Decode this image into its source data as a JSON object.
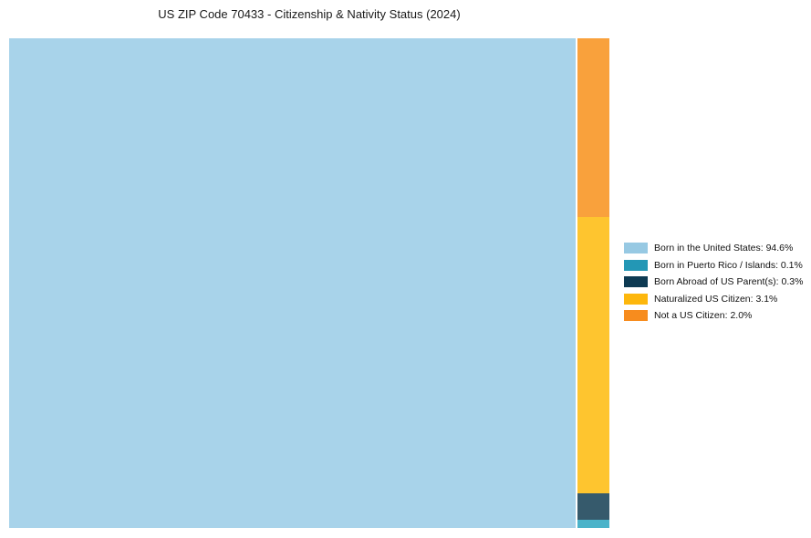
{
  "title": "US ZIP Code 70433 - Citizenship & Nativity Status (2024)",
  "background_color": "#ffffff",
  "chart_data": {
    "type": "treemap",
    "title": "US ZIP Code 70433 - Citizenship & Nativity Status (2024)",
    "unit": "percent",
    "legend_position": "right-middle",
    "layout_hint": "dominant category fills left block; remaining categories stacked top-to-bottom in a narrow right column in reverse legend order",
    "categories": [
      "Born in the United States",
      "Born in Puerto Rico / Islands",
      "Born Abroad of US Parent(s)",
      "Naturalized US Citizen",
      "Not a US Citizen"
    ],
    "values": [
      94.6,
      0.1,
      0.3,
      3.1,
      2.0
    ],
    "items": [
      {
        "label": "Born in the United States",
        "value": 94.6,
        "display": "Born in the United States: 94.6%",
        "fill": "#A8D3EA",
        "legend_color": "#97C9E3"
      },
      {
        "label": "Born in Puerto Rico / Islands",
        "value": 0.1,
        "display": "Born in Puerto Rico / Islands: 0.1%",
        "fill": "#4BB3C9",
        "legend_color": "#2397B5"
      },
      {
        "label": "Born Abroad of US Parent(s)",
        "value": 0.3,
        "display": "Born Abroad of US Parent(s): 0.3%",
        "fill": "#365A6C",
        "legend_color": "#0D3A52"
      },
      {
        "label": "Naturalized US Citizen",
        "value": 3.1,
        "display": "Naturalized US Citizen: 3.1%",
        "fill": "#FEC52F",
        "legend_color": "#FDB70D"
      },
      {
        "label": "Not a US Citizen",
        "value": 2.0,
        "display": "Not a US Citizen: 2.0%",
        "fill": "#F9A13C",
        "legend_color": "#F78C1E"
      }
    ]
  }
}
